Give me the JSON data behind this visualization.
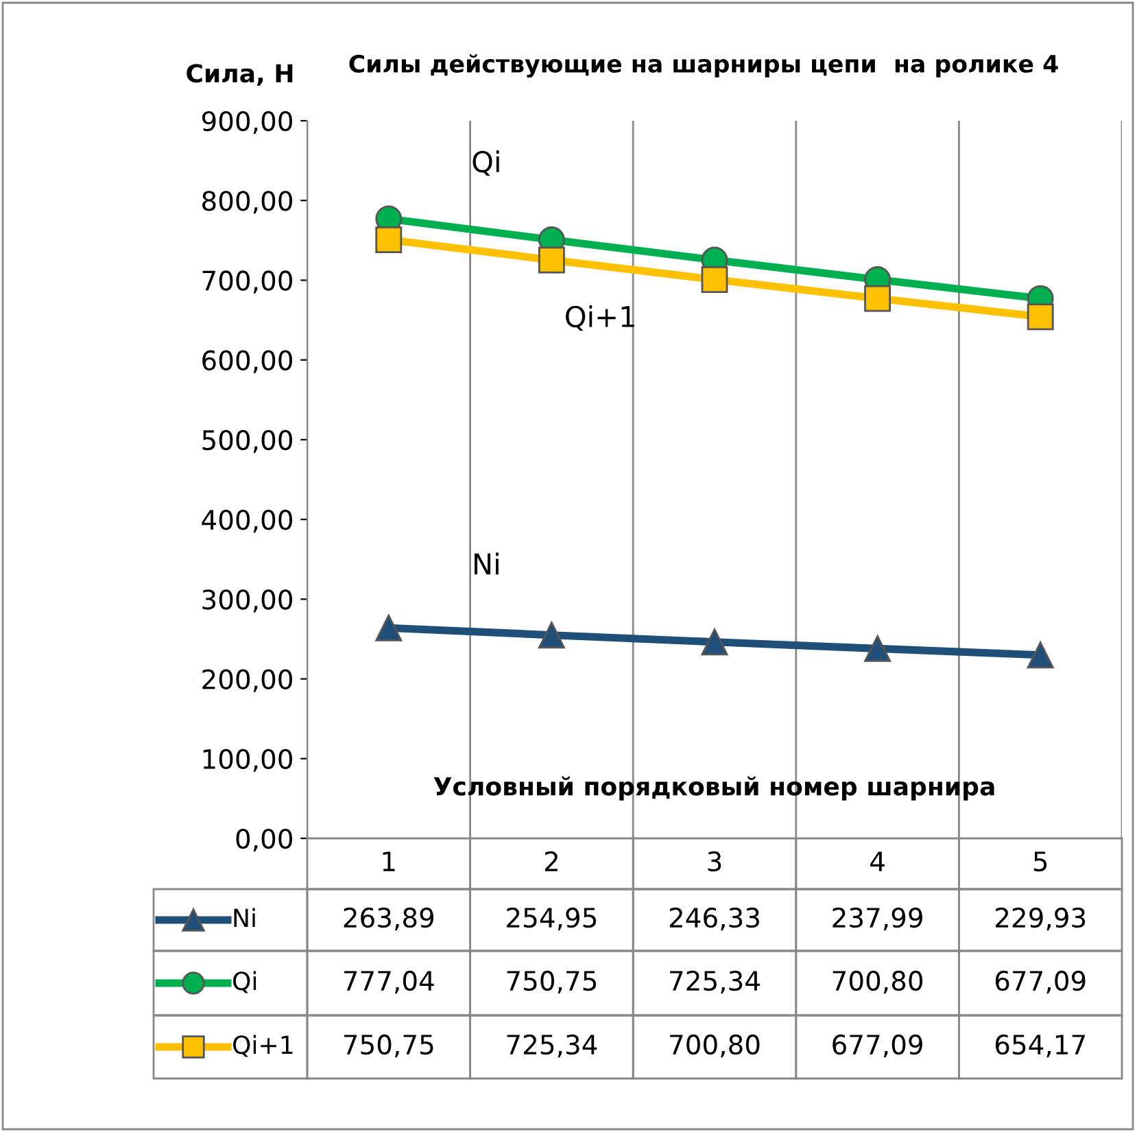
{
  "chart_data": {
    "type": "line",
    "title": "Силы действующие на шарниры цепи  на ролике 4",
    "ylabel": "Сила, Н",
    "xlabel": "Условный порядковый номер шарнира",
    "categories": [
      "1",
      "2",
      "3",
      "4",
      "5"
    ],
    "series": [
      {
        "name": "Ni",
        "color": "#1f4e79",
        "marker": "triangle",
        "values": [
          263.89,
          254.95,
          246.33,
          237.99,
          229.93
        ],
        "value_labels": [
          "263,89",
          "254,95",
          "246,33",
          "237,99",
          "229,93"
        ]
      },
      {
        "name": "Qi",
        "color": "#00b050",
        "marker": "circle",
        "values": [
          777.04,
          750.75,
          725.34,
          700.8,
          677.09
        ],
        "value_labels": [
          "777,04",
          "750,75",
          "725,34",
          "700,80",
          "677,09"
        ]
      },
      {
        "name": "Qi+1",
        "color": "#ffc000",
        "marker": "square",
        "values": [
          750.75,
          725.34,
          700.8,
          677.09,
          654.17
        ],
        "value_labels": [
          "750,75",
          "725,34",
          "700,80",
          "677,09",
          "654,17"
        ]
      }
    ],
    "ylim": [
      0,
      900
    ],
    "yticks": [
      {
        "value": 0,
        "label": "0,00"
      },
      {
        "value": 100,
        "label": "100,00"
      },
      {
        "value": 200,
        "label": "200,00"
      },
      {
        "value": 300,
        "label": "300,00"
      },
      {
        "value": 400,
        "label": "400,00"
      },
      {
        "value": 500,
        "label": "500,00"
      },
      {
        "value": 600,
        "label": "600,00"
      },
      {
        "value": 700,
        "label": "700,00"
      },
      {
        "value": 800,
        "label": "800,00"
      },
      {
        "value": 900,
        "label": "900,00"
      }
    ],
    "grid": "x",
    "legend": "bottom",
    "line_style": "solid"
  }
}
